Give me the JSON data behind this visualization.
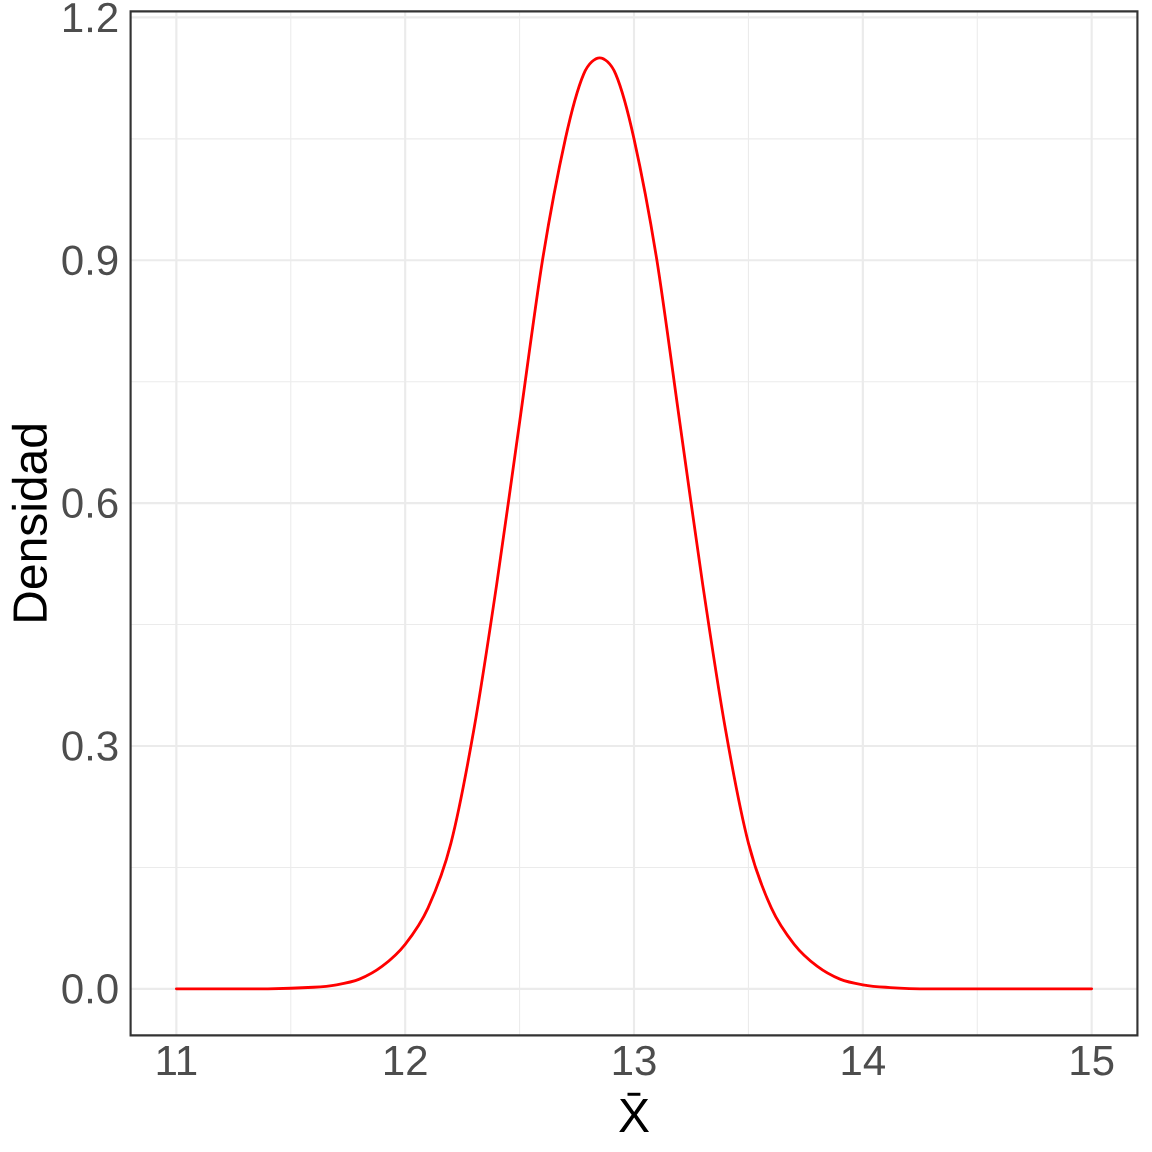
{
  "chart_data": {
    "type": "line",
    "xlabel": "X̄",
    "ylabel": "Densidad",
    "x": [
      11.0,
      11.4,
      11.6,
      11.7,
      11.8,
      11.9,
      12.0,
      12.1,
      12.2,
      12.3,
      12.4,
      12.5,
      12.6,
      12.7,
      12.78,
      12.85,
      12.92,
      13.0,
      13.1,
      13.2,
      13.3,
      13.4,
      13.5,
      13.6,
      13.7,
      13.8,
      13.9,
      14.0,
      14.1,
      14.3,
      15.0
    ],
    "series": [
      {
        "color": "#ff0000",
        "values": [
          0.0,
          0.0,
          0.002,
          0.005,
          0.012,
          0.028,
          0.055,
          0.1,
          0.18,
          0.32,
          0.5,
          0.7,
          0.9,
          1.05,
          1.13,
          1.15,
          1.13,
          1.05,
          0.9,
          0.7,
          0.5,
          0.32,
          0.18,
          0.1,
          0.055,
          0.028,
          0.012,
          0.005,
          0.002,
          0.0,
          0.0
        ]
      }
    ],
    "xlim": [
      10.8,
      15.2
    ],
    "ylim": [
      -0.0575,
      1.2075
    ],
    "xticks": [
      11,
      12,
      13,
      14,
      15
    ],
    "yticks": [
      {
        "value": 0,
        "label": "0.0"
      },
      0.3,
      0.6,
      0.9,
      1.2
    ],
    "grid": true,
    "line_style": "solid"
  }
}
